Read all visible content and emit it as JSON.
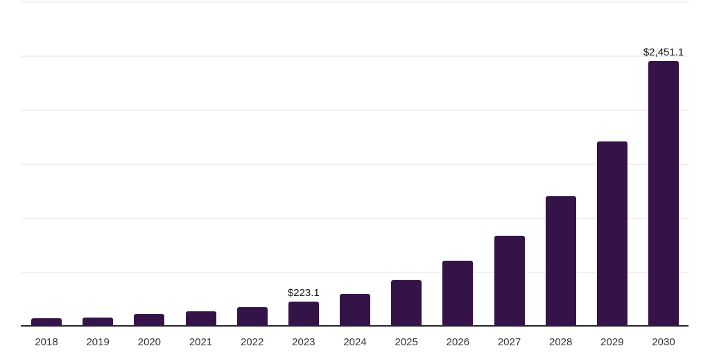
{
  "chart_data": {
    "type": "bar",
    "title": "",
    "xlabel": "",
    "ylabel": "",
    "categories": [
      "2018",
      "2019",
      "2020",
      "2021",
      "2022",
      "2023",
      "2024",
      "2025",
      "2026",
      "2027",
      "2028",
      "2029",
      "2030"
    ],
    "values": [
      70,
      80,
      108,
      136,
      176,
      223.1,
      292,
      425,
      600,
      836,
      1200,
      1704,
      2451.1
    ],
    "data_labels": {
      "2023": "$223.1",
      "2030": "$2,451.1"
    },
    "ylim": [
      0,
      3000
    ],
    "grid": "horizontal",
    "gridline_interval": 500,
    "legend_position": "none",
    "y_axis_tick_labels_visible": false
  },
  "colors": {
    "background": "#ffffff",
    "bar": "#341349",
    "gridline": "#f1f1f1",
    "axis_line": "#262626",
    "tick_label": "#333333",
    "data_label": "#111111"
  }
}
